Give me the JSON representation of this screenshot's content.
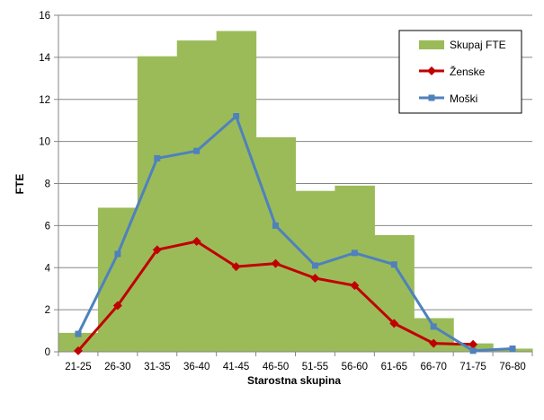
{
  "chart_data": {
    "type": "bar",
    "xlabel": "Starostna skupina",
    "ylabel": "FTE",
    "ylim": [
      0,
      16
    ],
    "yticks": [
      "0",
      "2",
      "4",
      "6",
      "8",
      "10",
      "12",
      "14",
      "16"
    ],
    "grid": true,
    "legend_position": "top-right",
    "categories": [
      "21-25",
      "26-30",
      "31-35",
      "36-40",
      "41-45",
      "46-50",
      "51-55",
      "56-60",
      "61-65",
      "66-70",
      "71-75",
      "76-80"
    ],
    "series": [
      {
        "name": "Skupaj FTE",
        "kind": "bar",
        "color": "#9bbb59",
        "values": [
          0.9,
          6.85,
          14.05,
          14.8,
          15.25,
          10.2,
          7.65,
          7.9,
          5.55,
          1.6,
          0.4,
          0.15
        ]
      },
      {
        "name": "Ženske",
        "kind": "line",
        "marker": "diamond",
        "color": "#c00000",
        "values": [
          0.05,
          2.2,
          4.85,
          5.25,
          4.05,
          4.2,
          3.5,
          3.15,
          1.35,
          0.4,
          0.35,
          null
        ]
      },
      {
        "name": "Moški",
        "kind": "line",
        "marker": "square",
        "color": "#4f81bd",
        "values": [
          0.85,
          4.65,
          9.2,
          9.55,
          11.2,
          6.0,
          4.1,
          4.7,
          4.15,
          1.2,
          0.05,
          0.15
        ]
      }
    ]
  }
}
